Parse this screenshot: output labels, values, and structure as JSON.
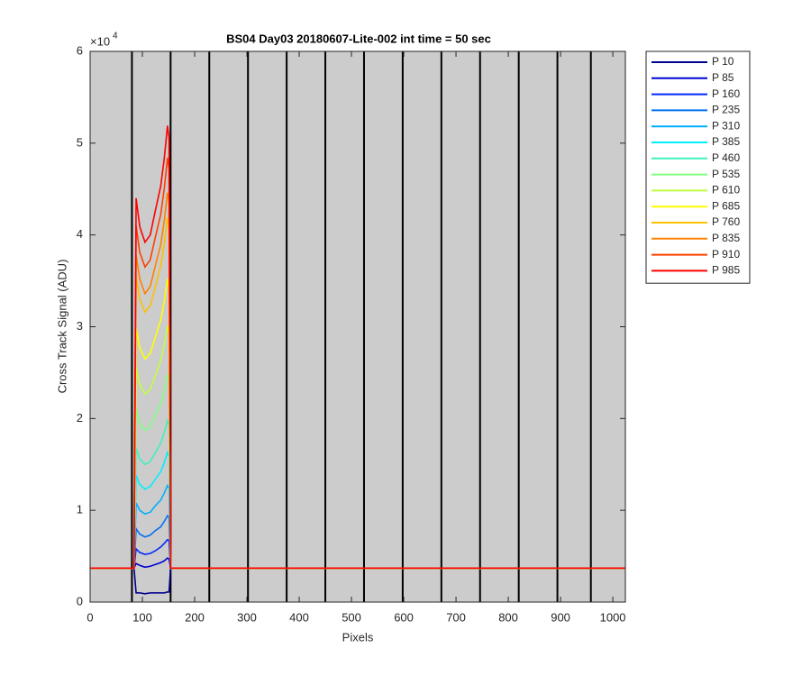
{
  "chart_data": {
    "type": "line",
    "title": "BS04 Day03 20180607-Lite-002 int time = 50 sec",
    "x_label": "Pixels",
    "y_label": "Cross Track Signal (ADU)",
    "y_multiplier": "×10",
    "y_multiplier_exponent": "4",
    "xlim": [
      0,
      1024
    ],
    "ylim": [
      0,
      6
    ],
    "xticks": [
      0,
      100,
      200,
      300,
      400,
      500,
      600,
      700,
      800,
      900,
      1000
    ],
    "yticks": [
      0,
      1,
      2,
      3,
      4,
      5,
      6
    ],
    "background": "#cccccc",
    "legend": "outside-right",
    "vlines": [
      80,
      154,
      228,
      302,
      376,
      450,
      524,
      598,
      672,
      746,
      820,
      894,
      958
    ],
    "x": [
      0,
      84,
      88,
      95,
      105,
      115,
      125,
      135,
      142,
      148,
      151,
      154,
      1024
    ],
    "series": [
      {
        "name": "P 10",
        "color": "#00008f",
        "values": [
          0.37,
          0.37,
          0.1,
          0.1,
          0.09,
          0.1,
          0.1,
          0.1,
          0.1,
          0.11,
          0.11,
          0.37,
          0.37
        ]
      },
      {
        "name": "P 85",
        "color": "#0000d4",
        "values": [
          0.37,
          0.37,
          0.42,
          0.4,
          0.38,
          0.39,
          0.41,
          0.43,
          0.45,
          0.48,
          0.47,
          0.37,
          0.37
        ]
      },
      {
        "name": "P 160",
        "color": "#0028ff",
        "values": [
          0.37,
          0.37,
          0.58,
          0.54,
          0.52,
          0.53,
          0.56,
          0.6,
          0.64,
          0.68,
          0.67,
          0.37,
          0.37
        ]
      },
      {
        "name": "P 235",
        "color": "#0070f0",
        "values": [
          0.37,
          0.37,
          0.8,
          0.74,
          0.71,
          0.73,
          0.78,
          0.82,
          0.88,
          0.94,
          0.92,
          0.37,
          0.37
        ]
      },
      {
        "name": "P 310",
        "color": "#00b0ff",
        "values": [
          0.37,
          0.37,
          1.08,
          1.0,
          0.96,
          0.98,
          1.05,
          1.11,
          1.19,
          1.27,
          1.24,
          0.37,
          0.37
        ]
      },
      {
        "name": "P 385",
        "color": "#00eeff",
        "values": [
          0.37,
          0.37,
          1.38,
          1.28,
          1.23,
          1.26,
          1.34,
          1.42,
          1.52,
          1.63,
          1.59,
          0.37,
          0.37
        ]
      },
      {
        "name": "P 460",
        "color": "#40f0c0",
        "values": [
          0.37,
          0.37,
          1.68,
          1.56,
          1.5,
          1.53,
          1.63,
          1.73,
          1.85,
          1.98,
          1.93,
          0.37,
          0.37
        ]
      },
      {
        "name": "P 535",
        "color": "#80ff80",
        "values": [
          0.37,
          0.37,
          2.1,
          1.95,
          1.87,
          1.91,
          2.04,
          2.16,
          2.31,
          2.48,
          2.42,
          0.37,
          0.37
        ]
      },
      {
        "name": "P 610",
        "color": "#c0ff40",
        "values": [
          0.37,
          0.37,
          2.55,
          2.37,
          2.27,
          2.32,
          2.47,
          2.63,
          2.81,
          3.01,
          2.93,
          0.37,
          0.37
        ]
      },
      {
        "name": "P 685",
        "color": "#ffff00",
        "values": [
          0.37,
          0.37,
          2.98,
          2.77,
          2.65,
          2.71,
          2.89,
          3.07,
          3.28,
          3.52,
          3.43,
          0.37,
          0.37
        ]
      },
      {
        "name": "P 760",
        "color": "#ffc000",
        "values": [
          0.37,
          0.37,
          3.55,
          3.3,
          3.16,
          3.23,
          3.44,
          3.66,
          3.91,
          4.19,
          4.08,
          0.37,
          0.37
        ]
      },
      {
        "name": "P 835",
        "color": "#ff8000",
        "values": [
          0.37,
          0.37,
          3.78,
          3.52,
          3.36,
          3.44,
          3.67,
          3.89,
          4.16,
          4.46,
          4.35,
          0.37,
          0.37
        ]
      },
      {
        "name": "P 910",
        "color": "#ff4000",
        "values": [
          0.37,
          0.37,
          4.1,
          3.81,
          3.65,
          3.73,
          3.98,
          4.22,
          4.51,
          4.84,
          4.72,
          0.37,
          0.37
        ]
      },
      {
        "name": "P 985",
        "color": "#ff0000",
        "values": [
          0.37,
          0.37,
          4.4,
          4.09,
          3.92,
          4.0,
          4.27,
          4.53,
          4.84,
          5.19,
          5.06,
          0.37,
          0.37
        ]
      }
    ]
  }
}
